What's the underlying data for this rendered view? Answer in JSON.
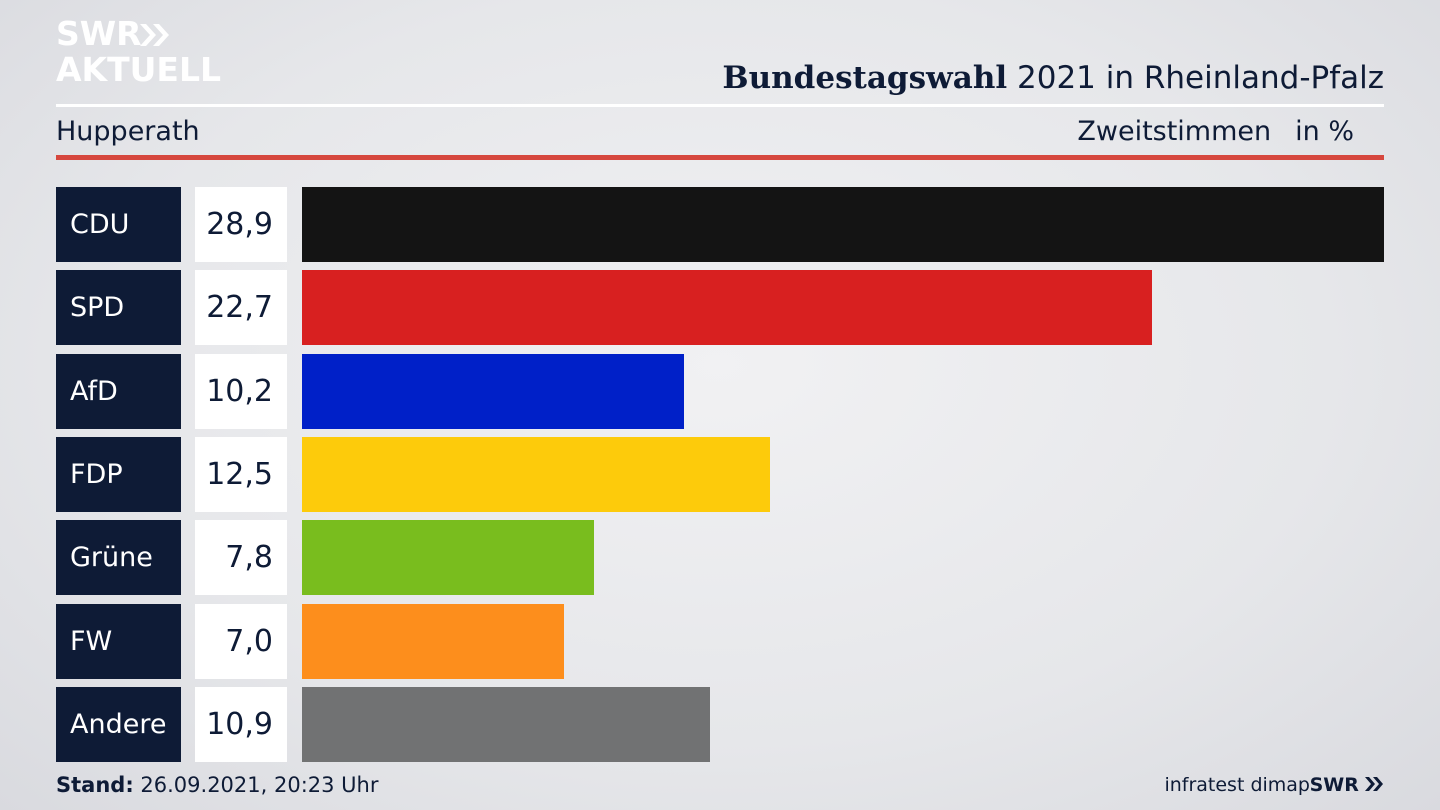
{
  "header": {
    "logo_line1": "SWR",
    "logo_line2": "AKTUELL",
    "title_bold": "Bundestagswahl",
    "title_rest": " 2021 in Rheinland-Pfalz",
    "region": "Hupperath",
    "measure": "Zweitstimmen",
    "unit": "in %"
  },
  "footer": {
    "stand_label": "Stand:",
    "stand_value": " 26.09.2021, 20:23 Uhr",
    "source": "infratest dimap",
    "brand": "SWR"
  },
  "colors": {
    "navy": "#0e1b36",
    "accent_red": "#d6473e"
  },
  "chart_data": {
    "type": "bar",
    "orientation": "horizontal",
    "categories": [
      "CDU",
      "SPD",
      "AfD",
      "FDP",
      "Grüne",
      "FW",
      "Andere"
    ],
    "values": [
      28.9,
      22.7,
      10.2,
      12.5,
      7.8,
      7.0,
      10.9
    ],
    "value_labels": [
      "28,9",
      "22,7",
      "10,2",
      "12,5",
      "7,8",
      "7,0",
      "10,9"
    ],
    "colors": [
      "#141414",
      "#d82020",
      "#0020c8",
      "#fdcb0b",
      "#79bd1e",
      "#fd8e1c",
      "#717273"
    ],
    "title": "Bundestagswahl 2021 in Rheinland-Pfalz",
    "xlabel": "Zweitstimmen",
    "ylabel": "",
    "unit": "in %",
    "xlim": [
      0,
      28.9
    ],
    "grid": false,
    "legend": "none"
  }
}
